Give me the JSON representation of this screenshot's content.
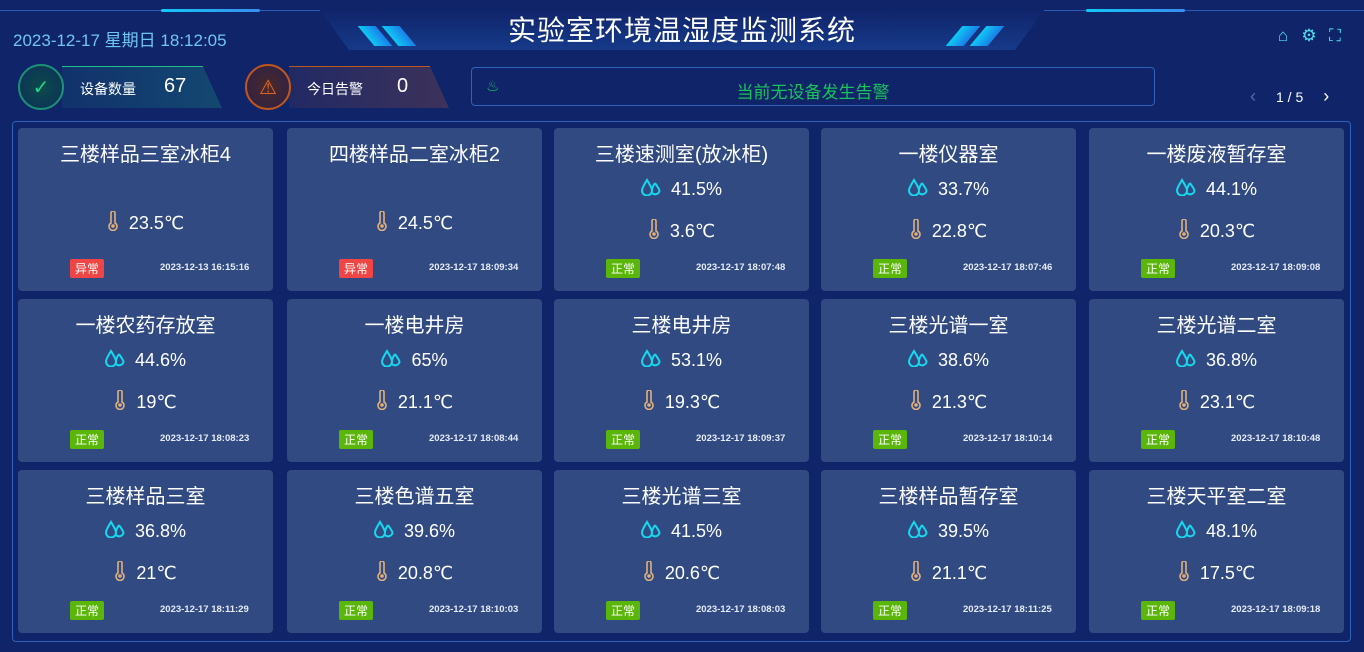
{
  "header": {
    "title": "实验室环境温湿度监测系统",
    "datetime": "2023-12-17 星期日 18:12:05",
    "icons": [
      "home-icon",
      "gear-icon",
      "fullscreen-icon"
    ]
  },
  "stats": {
    "devices": {
      "label": "设备数量",
      "value": "67",
      "color": "#20d68a"
    },
    "alarms": {
      "label": "今日告警",
      "value": "0",
      "color": "#f06a1e"
    }
  },
  "alarm_bar": {
    "text": "当前无设备发生告警",
    "color": "#19c25a"
  },
  "pager": {
    "text": "1 / 5"
  },
  "colors": {
    "normal": "#5bb60a",
    "abnormal": "#ef4545",
    "card": "#314a82",
    "background": "#10246a"
  },
  "cards": [
    {
      "name": "三楼样品三室冰柜4",
      "humidity": null,
      "temp": "23.5℃",
      "status": "异常",
      "ok": false,
      "time": "2023-12-13 16:15:16"
    },
    {
      "name": "四楼样品二室冰柜2",
      "humidity": null,
      "temp": "24.5℃",
      "status": "异常",
      "ok": false,
      "time": "2023-12-17 18:09:34"
    },
    {
      "name": "三楼速测室(放冰柜)",
      "humidity": "41.5%",
      "temp": "3.6℃",
      "status": "正常",
      "ok": true,
      "time": "2023-12-17 18:07:48"
    },
    {
      "name": "一楼仪器室",
      "humidity": "33.7%",
      "temp": "22.8℃",
      "status": "正常",
      "ok": true,
      "time": "2023-12-17 18:07:46"
    },
    {
      "name": "一楼废液暂存室",
      "humidity": "44.1%",
      "temp": "20.3℃",
      "status": "正常",
      "ok": true,
      "time": "2023-12-17 18:09:08"
    },
    {
      "name": "一楼农药存放室",
      "humidity": "44.6%",
      "temp": "19℃",
      "status": "正常",
      "ok": true,
      "time": "2023-12-17 18:08:23"
    },
    {
      "name": "一楼电井房",
      "humidity": "65%",
      "temp": "21.1℃",
      "status": "正常",
      "ok": true,
      "time": "2023-12-17 18:08:44"
    },
    {
      "name": "三楼电井房",
      "humidity": "53.1%",
      "temp": "19.3℃",
      "status": "正常",
      "ok": true,
      "time": "2023-12-17 18:09:37"
    },
    {
      "name": "三楼光谱一室",
      "humidity": "38.6%",
      "temp": "21.3℃",
      "status": "正常",
      "ok": true,
      "time": "2023-12-17 18:10:14"
    },
    {
      "name": "三楼光谱二室",
      "humidity": "36.8%",
      "temp": "23.1℃",
      "status": "正常",
      "ok": true,
      "time": "2023-12-17 18:10:48"
    },
    {
      "name": "三楼样品三室",
      "humidity": "36.8%",
      "temp": "21℃",
      "status": "正常",
      "ok": true,
      "time": "2023-12-17 18:11:29"
    },
    {
      "name": "三楼色谱五室",
      "humidity": "39.6%",
      "temp": "20.8℃",
      "status": "正常",
      "ok": true,
      "time": "2023-12-17 18:10:03"
    },
    {
      "name": "三楼光谱三室",
      "humidity": "41.5%",
      "temp": "20.6℃",
      "status": "正常",
      "ok": true,
      "time": "2023-12-17 18:08:03"
    },
    {
      "name": "三楼样品暂存室",
      "humidity": "39.5%",
      "temp": "21.1℃",
      "status": "正常",
      "ok": true,
      "time": "2023-12-17 18:11:25"
    },
    {
      "name": "三楼天平室二室",
      "humidity": "48.1%",
      "temp": "17.5℃",
      "status": "正常",
      "ok": true,
      "time": "2023-12-17 18:09:18"
    }
  ]
}
